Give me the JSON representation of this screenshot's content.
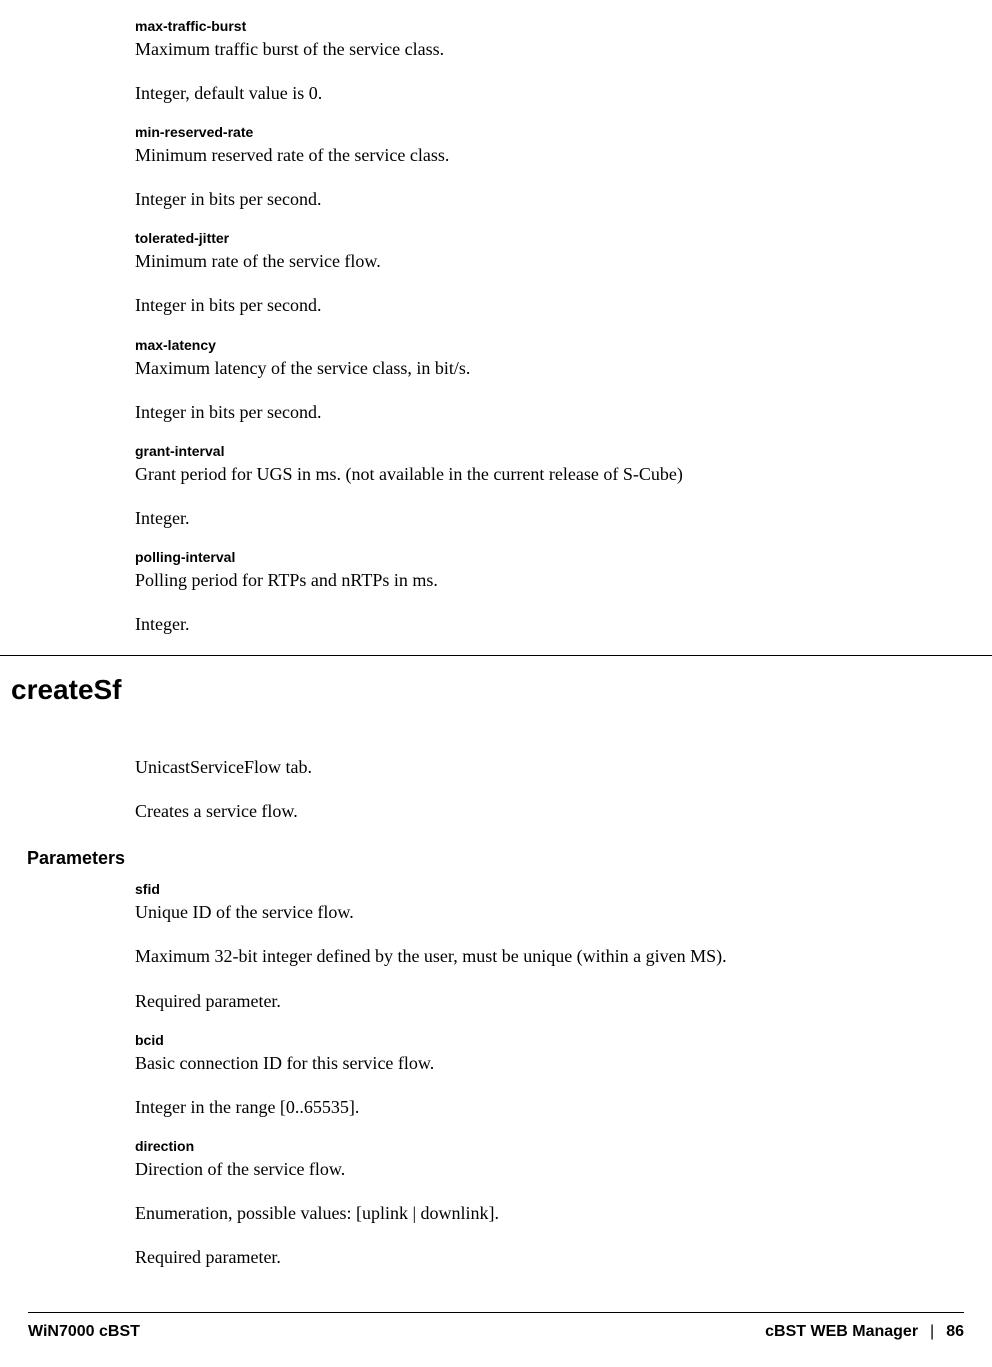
{
  "params_top": [
    {
      "name": "max-traffic-burst",
      "desc": "Maximum traffic burst of the service class.",
      "note": "Integer, default value is 0."
    },
    {
      "name": "min-reserved-rate",
      "desc": "Minimum reserved rate of the service class.",
      "note": "Integer in bits per second."
    },
    {
      "name": "tolerated-jitter",
      "desc": "Minimum rate of the service flow.",
      "note": "Integer in bits per second."
    },
    {
      "name": "max-latency",
      "desc": "Maximum latency of the service class, in bit/s.",
      "note": "Integer in bits per second."
    },
    {
      "name": "grant-interval",
      "desc": "Grant period for UGS in ms. (not available in the current release of S-Cube)",
      "note": "Integer."
    },
    {
      "name": "polling-interval",
      "desc": "Polling period for RTPs and nRTPs in ms.",
      "note": "Integer."
    }
  ],
  "section": {
    "title": "createSf",
    "intro1": "UnicastServiceFlow tab.",
    "intro2": "Creates a service flow.",
    "sub_heading": "Parameters"
  },
  "params_section": [
    {
      "name": "sfid",
      "lines": [
        "Unique ID of the service flow.",
        "Maximum 32-bit integer defined by the user, must be unique (within a given MS).",
        "Required parameter."
      ]
    },
    {
      "name": "bcid",
      "lines": [
        "Basic connection ID for this service flow.",
        "Integer in the range [0..65535]."
      ]
    },
    {
      "name": "direction",
      "lines": [
        "Direction of the service flow.",
        "Enumeration, possible values: [uplink | downlink].",
        "Required parameter."
      ]
    }
  ],
  "footer": {
    "left": "WiN7000 cBST",
    "right_label": "cBST WEB Manager",
    "sep": "|",
    "page": "86"
  }
}
